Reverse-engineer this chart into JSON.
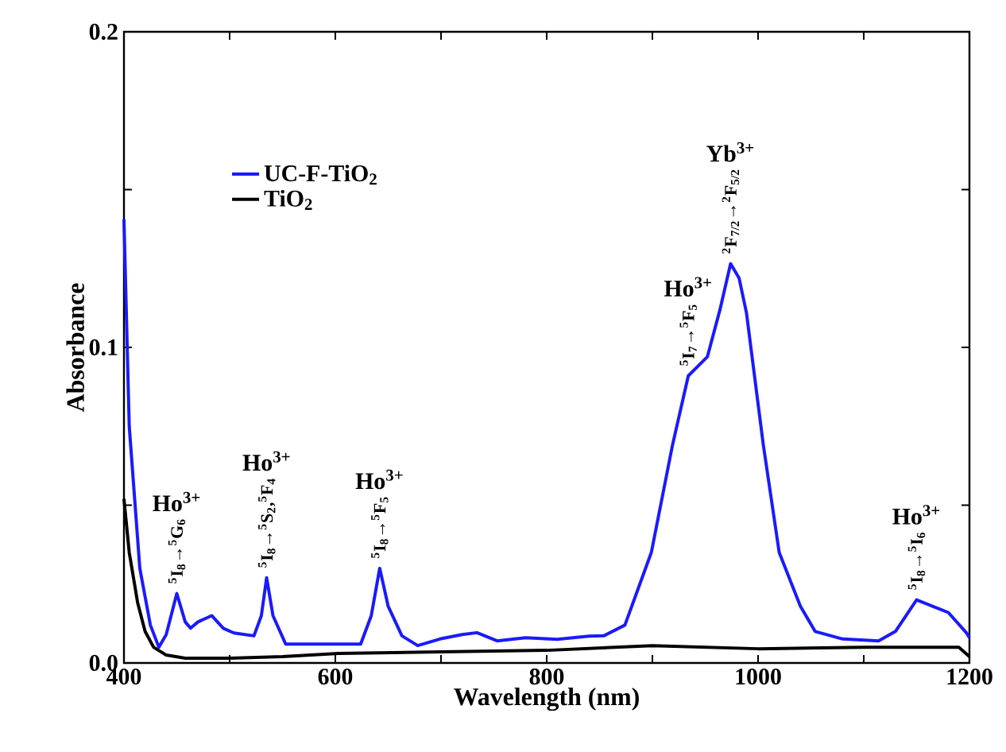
{
  "chart_data": {
    "type": "line",
    "xlabel": "Wavelength (nm)",
    "ylabel": "Absorbance",
    "xlim": [
      400,
      1200
    ],
    "ylim": [
      0,
      0.2
    ],
    "xticks": [
      400,
      {
        "value": 500,
        "label": null
      },
      600,
      {
        "value": 700,
        "label": null
      },
      800,
      {
        "value": 900,
        "label": null
      },
      1000,
      {
        "value": 1100,
        "label": null
      },
      1200
    ],
    "yticks": [
      {
        "value": 0,
        "label": "0.0"
      },
      {
        "value": 0.05,
        "label": null
      },
      0.1,
      {
        "value": 0.15,
        "label": null
      },
      0.2
    ],
    "legend": "top left",
    "line_style": "solid",
    "marker": "none",
    "series": [
      {
        "name": "UC-F-TiO$_{2}$",
        "color": "#1a1aff",
        "x": [
          400,
          405,
          415,
          425,
          433,
          440,
          450,
          458,
          463,
          470,
          483,
          494,
          504,
          523,
          530,
          535,
          541,
          553,
          583,
          610,
          624,
          634,
          642,
          650,
          663,
          678,
          699,
          720,
          734,
          753,
          780,
          810,
          840,
          854,
          874,
          899,
          919,
          934,
          952,
          964,
          974,
          982,
          989,
          1005,
          1020,
          1040,
          1054,
          1080,
          1114,
          1130,
          1150,
          1165,
          1180,
          1197,
          1200
        ],
        "values": [
          0.1406,
          0.075,
          0.03,
          0.012,
          0.005,
          0.009,
          0.022,
          0.013,
          0.011,
          0.013,
          0.015,
          0.011,
          0.0095,
          0.0086,
          0.015,
          0.027,
          0.015,
          0.006,
          0.006,
          0.006,
          0.006,
          0.015,
          0.03,
          0.018,
          0.0086,
          0.0055,
          0.0076,
          0.009,
          0.0096,
          0.007,
          0.008,
          0.0075,
          0.0085,
          0.0086,
          0.012,
          0.035,
          0.069,
          0.091,
          0.097,
          0.112,
          0.1265,
          0.122,
          0.111,
          0.069,
          0.035,
          0.018,
          0.01,
          0.0076,
          0.007,
          0.01,
          0.02,
          0.018,
          0.016,
          0.0096,
          0.008
        ]
      },
      {
        "name": "TiO$_{2}$",
        "color": "#000000",
        "x": [
          400,
          405,
          413,
          420,
          428,
          440,
          458,
          500,
          550,
          603,
          700,
          800,
          900,
          1000,
          1100,
          1190,
          1200
        ],
        "values": [
          0.052,
          0.035,
          0.019,
          0.01,
          0.005,
          0.0025,
          0.0015,
          0.0015,
          0.002,
          0.003,
          0.0035,
          0.004,
          0.0055,
          0.0045,
          0.005,
          0.005,
          0.002
        ]
      }
    ],
    "annotations": [
      "Ho$^{3+}$",
      {
        "text": "$^{5}$I$_{8}$→$^{5}$G$_{6}$",
        "x": 450,
        "y": 0.022
      },
      "Ho$^{3+}$",
      "$^{5}$I$_{8}$→$^{5}$S$_{2}$,$^{5}$F$_{4}$",
      "Ho$^{3+}$",
      {
        "text": "$^{5}$I$_{8}$→$^{5}$F$_{5}$",
        "x": 642,
        "y": 0.03
      },
      "Ho$^{3+}$",
      {
        "text": "$^{5}$I$_{7}$→$^{5}$F$_{5}$",
        "x": 934,
        "y": 0.091
      },
      "Yb$^{3+}$",
      {
        "text": "$^{2}$F$_{7/2}$→$^{2}$F$_{5/2}$",
        "x": 974,
        "y": 0.1265
      },
      "Ho$^{3+}$",
      {
        "text": "$^{5}$I$_{8}$→$^{5}$I$_{6}$",
        "x": 1150,
        "y": 0.02
      }
    ]
  }
}
